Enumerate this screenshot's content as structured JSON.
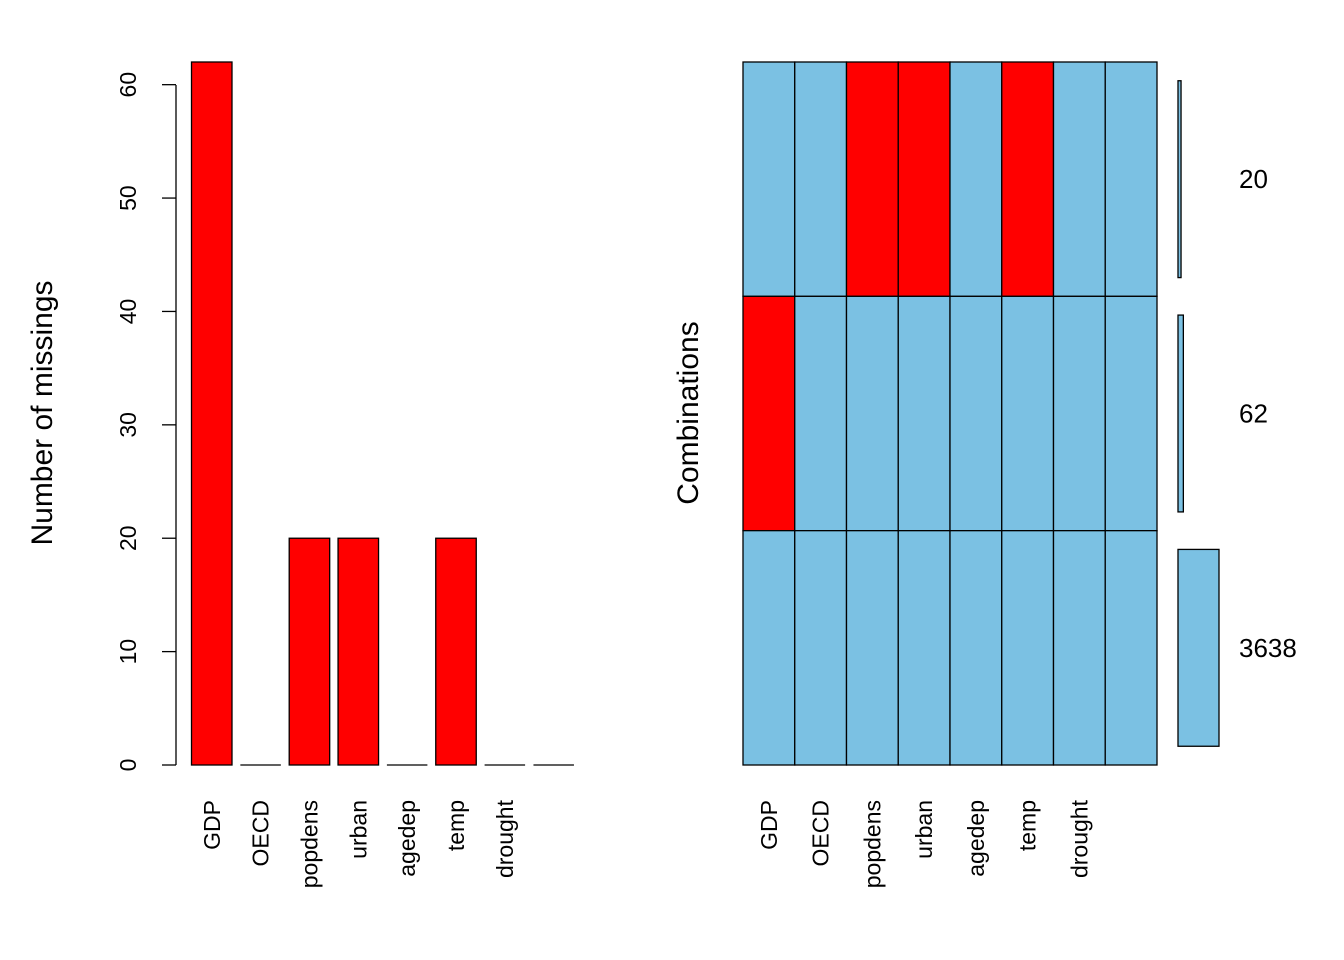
{
  "colors": {
    "missing": "#ff0000",
    "observed": "#7bc1e3",
    "stroke": "#000000"
  },
  "chart_data": [
    {
      "type": "bar",
      "ylabel": "Number of missings",
      "xlabel": "",
      "categories": [
        "GDP",
        "OECD",
        "popdens",
        "urban",
        "agedep",
        "temp",
        "drought",
        ""
      ],
      "values": [
        62,
        0,
        20,
        20,
        0,
        20,
        0,
        0
      ],
      "yticks": [
        0,
        10,
        20,
        30,
        40,
        50,
        60
      ],
      "ylim": [
        0,
        62
      ],
      "grid": false
    },
    {
      "type": "heatmap",
      "ylabel": "Combinations",
      "columns": [
        "GDP",
        "OECD",
        "popdens",
        "urban",
        "agedep",
        "temp",
        "drought",
        ""
      ],
      "rows": [
        {
          "count": 20,
          "missing": [
            false,
            false,
            true,
            true,
            false,
            true,
            false,
            false
          ]
        },
        {
          "count": 62,
          "missing": [
            true,
            false,
            false,
            false,
            false,
            false,
            false,
            false
          ]
        },
        {
          "count": 3638,
          "missing": [
            false,
            false,
            false,
            false,
            false,
            false,
            false,
            false
          ]
        }
      ],
      "count_labels": [
        "20",
        "62",
        "3638"
      ],
      "grid": false
    }
  ]
}
